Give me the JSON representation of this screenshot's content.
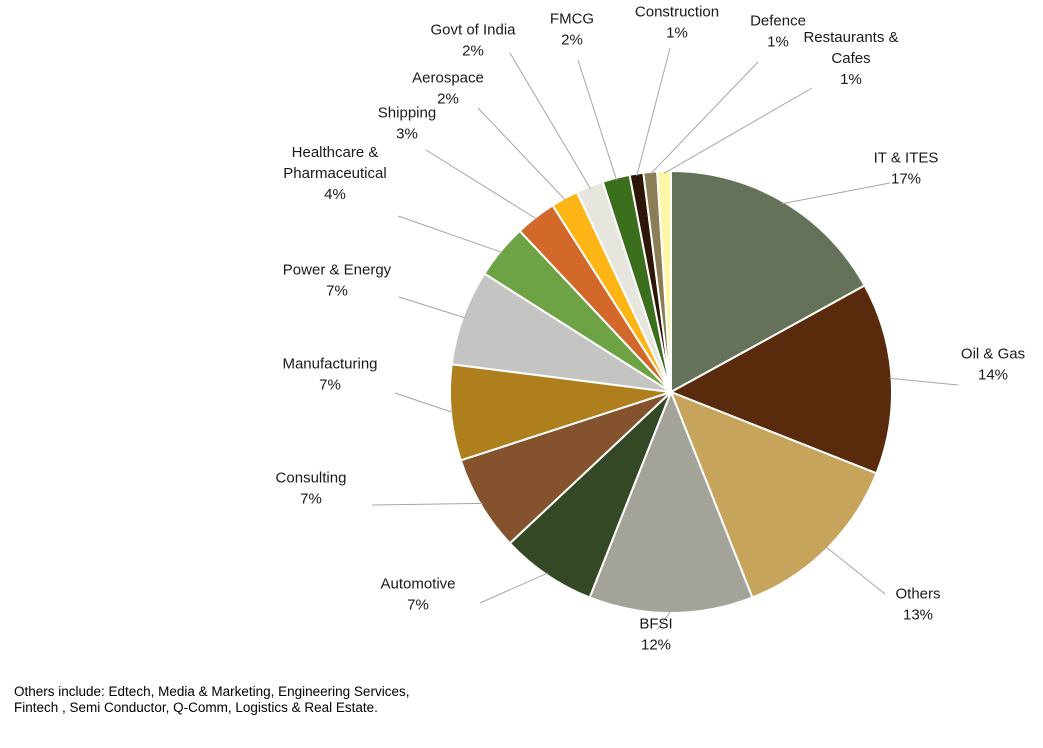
{
  "chart_data": {
    "type": "pie",
    "title": "",
    "slices": [
      {
        "label": [
          "IT & ITES"
        ],
        "value": 17,
        "value_text": "17%",
        "color": "#657259"
      },
      {
        "label": [
          "Oil & Gas"
        ],
        "value": 14,
        "value_text": "14%",
        "color": "#5a2a0c"
      },
      {
        "label": [
          "Others"
        ],
        "value": 13,
        "value_text": "13%",
        "color": "#c6a45b"
      },
      {
        "label": [
          "BFSI"
        ],
        "value": 12,
        "value_text": "12%",
        "color": "#a4a39a"
      },
      {
        "label": [
          "Automotive"
        ],
        "value": 7,
        "value_text": "7%",
        "color": "#344826"
      },
      {
        "label": [
          "Consulting"
        ],
        "value": 7,
        "value_text": "7%",
        "color": "#85522e"
      },
      {
        "label": [
          "Manufacturing"
        ],
        "value": 7,
        "value_text": "7%",
        "color": "#ae7f1c"
      },
      {
        "label": [
          "Power & Energy"
        ],
        "value": 7,
        "value_text": "7%",
        "color": "#c4c4c2"
      },
      {
        "label": [
          "Healthcare &",
          "Pharmaceutical"
        ],
        "value": 4,
        "value_text": "4%",
        "color": "#6ea345"
      },
      {
        "label": [
          "Shipping"
        ],
        "value": 3,
        "value_text": "3%",
        "color": "#d2692a"
      },
      {
        "label": [
          "Aerospace"
        ],
        "value": 2,
        "value_text": "2%",
        "color": "#fdb515"
      },
      {
        "label": [
          "Govt of India"
        ],
        "value": 2,
        "value_text": "2%",
        "color": "#e6e6de"
      },
      {
        "label": [
          "FMCG"
        ],
        "value": 2,
        "value_text": "2%",
        "color": "#3b6e1d"
      },
      {
        "label": [
          "Construction"
        ],
        "value": 1,
        "value_text": "1%",
        "color": "#2e1606"
      },
      {
        "label": [
          "Defence"
        ],
        "value": 1,
        "value_text": "1%",
        "color": "#8b7d55"
      },
      {
        "label": [
          "Restaurants &",
          "Cafes"
        ],
        "value": 1,
        "value_text": "1%",
        "color": "#fff6a8"
      }
    ]
  },
  "footnote": "Others include: Edtech, Media & Marketing, Engineering Services,  Fintech , Semi Conductor, Q-Comm, Logistics & Real Estate."
}
